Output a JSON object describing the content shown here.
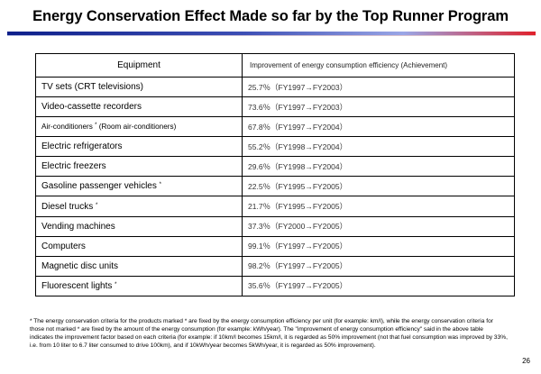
{
  "slide": {
    "title": "Energy Conservation Effect Made so far by the Top Runner Program",
    "page_number": "26"
  },
  "table": {
    "headers": {
      "equipment": "Equipment",
      "improvement": "Improvement of energy consumption efficiency (Achievement)"
    },
    "rows": [
      {
        "equipment": "TV sets (CRT televisions)",
        "mark": "",
        "value": "25.7％（FY1997→FY2003）"
      },
      {
        "equipment": "Video-cassette recorders",
        "mark": "",
        "value": "73.6％（FY1997→FY2003）"
      },
      {
        "equipment": "Air-conditioners ",
        "mark": "*",
        "suffix": " (Room air-conditioners)",
        "value": "67.8％（FY1997→FY2004）"
      },
      {
        "equipment": "Electric refrigerators",
        "mark": "",
        "value": "55.2％（FY1998→FY2004）"
      },
      {
        "equipment": "Electric freezers",
        "mark": "",
        "value": "29.6％（FY1998→FY2004）"
      },
      {
        "equipment": "Gasoline passenger vehicles ",
        "mark": "*",
        "value": "22.5％（FY1995→FY2005）"
      },
      {
        "equipment": "Diesel trucks ",
        "mark": "*",
        "value": "21.7％（FY1995→FY2005）"
      },
      {
        "equipment": "Vending machines",
        "mark": "",
        "value": "37.3％（FY2000→FY2005）"
      },
      {
        "equipment": "Computers",
        "mark": "",
        "value": "99.1％（FY1997→FY2005）"
      },
      {
        "equipment": "Magnetic disc units",
        "mark": "",
        "value": "98.2％（FY1997→FY2005）"
      },
      {
        "equipment": "Fluorescent lights ",
        "mark": "*",
        "value": "35.6％（FY1997→FY2005）"
      }
    ]
  },
  "footnote": "* The energy conservation criteria for the products marked * are fixed by the energy consumption efficiency per unit (for example: km/l), while the energy conservation criteria for those not marked * are fixed by the amount of the energy consumption (for example: kWh/year). The \"improvement of energy consumption efficiency\" said in the above table indicates the improvement factor based on each criteria (for example: if 10km/l becomes 15km/l, it is regarded as 50% improvement (not that fuel consumption was improved by 33%, i.e. from 10 liter to 6.7 liter consumed to drive 100km), and if 10kWh/year becomes 5kWh/year, it is regarded as 50% improvement)."
}
